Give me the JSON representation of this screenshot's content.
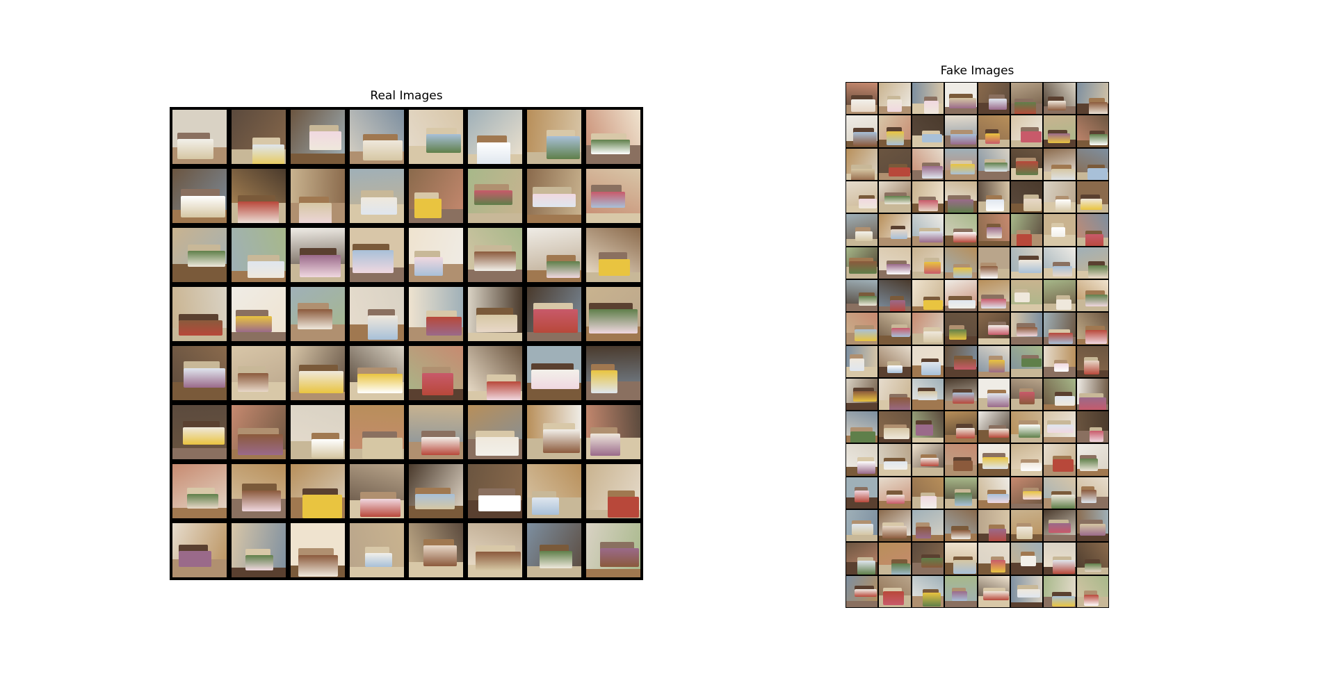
{
  "panels": {
    "real": {
      "title": "Real Images",
      "rows": 8,
      "cols": 8
    },
    "fake": {
      "title": "Fake Images",
      "rows": 16,
      "cols": 8
    }
  },
  "palette": {
    "walls": [
      "#d9d2c4",
      "#8a6a4c",
      "#efece6",
      "#b9a58b",
      "#6b5540",
      "#c9b38f",
      "#9fb0b8",
      "#e6dccd",
      "#4a3a2c",
      "#a7b88a",
      "#c78a70",
      "#d8c6a8",
      "#7d8fa0",
      "#b88f5a",
      "#efe3cf",
      "#5b4a3d"
    ],
    "beds": [
      "#f2f0ea",
      "#ffffff",
      "#e8d8c8",
      "#c85a6a",
      "#8b5a3c",
      "#dfe6ee",
      "#e9c440",
      "#a8c0d8",
      "#f0d8e0",
      "#b8483a",
      "#d6c7a4",
      "#9a6a8a",
      "#5f7f4a",
      "#efe8dc"
    ],
    "floors": [
      "#7a5a3a",
      "#a07850",
      "#c8b898",
      "#5a4030",
      "#d8c8a8",
      "#8a7060",
      "#b09070"
    ],
    "frame": "#000000"
  }
}
